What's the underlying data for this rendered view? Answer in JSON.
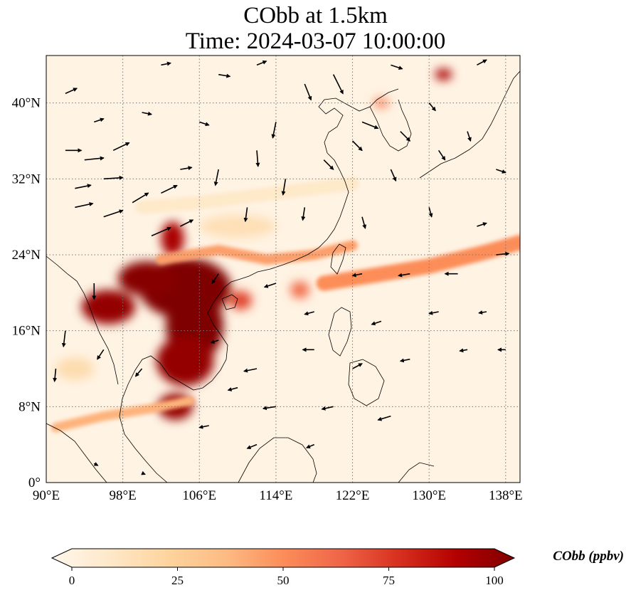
{
  "title": {
    "line1": "CObb at 1.5km",
    "line2": "Time: 2024-03-07 10:00:00"
  },
  "map": {
    "lon_range": [
      90,
      139.5
    ],
    "lat_range": [
      0,
      45
    ],
    "gridlines": true,
    "lon_ticks": [
      {
        "value": 90,
        "label": "90°E"
      },
      {
        "value": 98,
        "label": "98°E"
      },
      {
        "value": 106,
        "label": "106°E"
      },
      {
        "value": 114,
        "label": "114°E"
      },
      {
        "value": 122,
        "label": "122°E"
      },
      {
        "value": 130,
        "label": "130°E"
      },
      {
        "value": 138,
        "label": "138°E"
      }
    ],
    "lat_ticks": [
      {
        "value": 0,
        "label": "0°"
      },
      {
        "value": 8,
        "label": "8°N"
      },
      {
        "value": 16,
        "label": "16°N"
      },
      {
        "value": 24,
        "label": "24°N"
      },
      {
        "value": 32,
        "label": "32°N"
      },
      {
        "value": 40,
        "label": "40°N"
      }
    ],
    "plumes": [
      {
        "lon": 104.5,
        "lat": 20.5,
        "rx": 4.8,
        "ry": 3.2,
        "level": 100
      },
      {
        "lon": 105.5,
        "lat": 16.5,
        "rx": 3.0,
        "ry": 3.8,
        "level": 100
      },
      {
        "lon": 104.5,
        "lat": 12.8,
        "rx": 3.0,
        "ry": 2.6,
        "level": 95
      },
      {
        "lon": 103.5,
        "lat": 8.0,
        "rx": 1.8,
        "ry": 1.4,
        "level": 95
      },
      {
        "lon": 96.5,
        "lat": 18.5,
        "rx": 2.8,
        "ry": 1.8,
        "level": 95
      },
      {
        "lon": 100.5,
        "lat": 21.5,
        "rx": 3.0,
        "ry": 1.8,
        "level": 98
      },
      {
        "lon": 103.2,
        "lat": 25.7,
        "rx": 1.2,
        "ry": 1.8,
        "level": 90
      },
      {
        "lon": 110.3,
        "lat": 19.2,
        "rx": 1.2,
        "ry": 1.0,
        "level": 70
      },
      {
        "lon": 116.5,
        "lat": 20.3,
        "rx": 1.0,
        "ry": 0.9,
        "level": 60
      },
      {
        "lon": 131.5,
        "lat": 43.0,
        "rx": 0.9,
        "ry": 0.6,
        "level": 90
      },
      {
        "lon": 125.0,
        "lat": 40.0,
        "rx": 0.8,
        "ry": 0.5,
        "level": 55
      },
      {
        "lon": 93.0,
        "lat": 12.0,
        "rx": 2.0,
        "ry": 1.2,
        "level": 20
      },
      {
        "lon": 110.0,
        "lat": 27.0,
        "rx": 4.0,
        "ry": 1.2,
        "level": 18
      }
    ],
    "bands": [
      {
        "points": [
          [
            102,
            23.5
          ],
          [
            108,
            24.5
          ],
          [
            113,
            23.5
          ],
          [
            118,
            24.0
          ],
          [
            122,
            25.0
          ]
        ],
        "width": 1.1,
        "level": 45
      },
      {
        "points": [
          [
            119,
            21.0
          ],
          [
            124,
            21.8
          ],
          [
            130,
            22.8
          ],
          [
            136,
            24.3
          ],
          [
            139.5,
            25.3
          ]
        ],
        "width": 1.6,
        "level": 50
      },
      {
        "points": [
          [
            91,
            5.8
          ],
          [
            96,
            7.0
          ],
          [
            101,
            7.8
          ],
          [
            105,
            8.6
          ]
        ],
        "width": 1.0,
        "level": 40
      },
      {
        "points": [
          [
            100,
            29
          ],
          [
            106,
            29.5
          ],
          [
            114,
            30.5
          ],
          [
            122,
            31.5
          ]
        ],
        "width": 1.4,
        "level": 12
      }
    ],
    "wind_arrows": [
      {
        "lon": 92,
        "lat": 35,
        "u": 2.5,
        "v": 0
      },
      {
        "lon": 94,
        "lat": 34,
        "u": 3,
        "v": 0.3
      },
      {
        "lon": 97,
        "lat": 35,
        "u": 2.5,
        "v": 1.2
      },
      {
        "lon": 93,
        "lat": 31,
        "u": 2.5,
        "v": 0.5
      },
      {
        "lon": 96,
        "lat": 32,
        "u": 3,
        "v": 0.2
      },
      {
        "lon": 93,
        "lat": 29,
        "u": 2.8,
        "v": 0.6
      },
      {
        "lon": 96,
        "lat": 28,
        "u": 3,
        "v": 1
      },
      {
        "lon": 99,
        "lat": 29.5,
        "u": 2.5,
        "v": 1.5
      },
      {
        "lon": 102,
        "lat": 30.5,
        "u": 2.5,
        "v": 1.2
      },
      {
        "lon": 101,
        "lat": 26,
        "u": 3,
        "v": 1.3
      },
      {
        "lon": 104,
        "lat": 27,
        "u": 2,
        "v": 1
      },
      {
        "lon": 104,
        "lat": 33,
        "u": 1.8,
        "v": 0.3
      },
      {
        "lon": 108,
        "lat": 33,
        "u": -0.5,
        "v": -2.5
      },
      {
        "lon": 112,
        "lat": 35,
        "u": 0.2,
        "v": -2.5
      },
      {
        "lon": 114,
        "lat": 38,
        "u": -0.5,
        "v": -2.5
      },
      {
        "lon": 117,
        "lat": 42,
        "u": 1,
        "v": -2.5
      },
      {
        "lon": 120,
        "lat": 43,
        "u": 1.5,
        "v": -3
      },
      {
        "lon": 115,
        "lat": 32,
        "u": -0.4,
        "v": -2.5
      },
      {
        "lon": 119,
        "lat": 34,
        "u": 1.5,
        "v": -1.5
      },
      {
        "lon": 122,
        "lat": 36,
        "u": 1.5,
        "v": -1.5
      },
      {
        "lon": 123,
        "lat": 38,
        "u": 2.5,
        "v": -1
      },
      {
        "lon": 127,
        "lat": 37,
        "u": 1.5,
        "v": -1.5
      },
      {
        "lon": 126,
        "lat": 33,
        "u": 0.8,
        "v": -1.8
      },
      {
        "lon": 131,
        "lat": 35,
        "u": 1,
        "v": -1.5
      },
      {
        "lon": 134,
        "lat": 37,
        "u": 0.5,
        "v": -1.5
      },
      {
        "lon": 137,
        "lat": 33,
        "u": 1.5,
        "v": -0.5
      },
      {
        "lon": 130,
        "lat": 29,
        "u": 0.4,
        "v": -1.5
      },
      {
        "lon": 135,
        "lat": 27,
        "u": 1.5,
        "v": 0.5
      },
      {
        "lon": 123,
        "lat": 28,
        "u": 0.5,
        "v": -1.8
      },
      {
        "lon": 117,
        "lat": 29,
        "u": -0.3,
        "v": -2
      },
      {
        "lon": 111,
        "lat": 29,
        "u": -0.3,
        "v": -2.2
      },
      {
        "lon": 108,
        "lat": 22,
        "u": -1,
        "v": -1.5
      },
      {
        "lon": 114,
        "lat": 21,
        "u": -1.8,
        "v": -0.6
      },
      {
        "lon": 118,
        "lat": 18,
        "u": -1.5,
        "v": -0.4
      },
      {
        "lon": 123,
        "lat": 22,
        "u": -1.5,
        "v": -0.3
      },
      {
        "lon": 128,
        "lat": 22,
        "u": -1.8,
        "v": -0.3
      },
      {
        "lon": 133,
        "lat": 22,
        "u": -2,
        "v": 0
      },
      {
        "lon": 137,
        "lat": 24,
        "u": 2,
        "v": 0.2
      },
      {
        "lon": 125,
        "lat": 17,
        "u": -1.5,
        "v": -0.5
      },
      {
        "lon": 131,
        "lat": 18,
        "u": -1.5,
        "v": -0.3
      },
      {
        "lon": 136,
        "lat": 18,
        "u": -1.2,
        "v": -0.2
      },
      {
        "lon": 118,
        "lat": 14,
        "u": -1.8,
        "v": 0
      },
      {
        "lon": 112,
        "lat": 12,
        "u": -2,
        "v": -0.4
      },
      {
        "lon": 122,
        "lat": 12,
        "u": 1.5,
        "v": 0.8
      },
      {
        "lon": 128,
        "lat": 13,
        "u": -1.5,
        "v": -0.3
      },
      {
        "lon": 134,
        "lat": 14,
        "u": -1.2,
        "v": -0.2
      },
      {
        "lon": 138,
        "lat": 14,
        "u": -1.2,
        "v": 0
      },
      {
        "lon": 114,
        "lat": 8,
        "u": -2,
        "v": -0.3
      },
      {
        "lon": 120,
        "lat": 8,
        "u": -1.8,
        "v": -0.4
      },
      {
        "lon": 126,
        "lat": 7,
        "u": -2,
        "v": -0.6
      },
      {
        "lon": 107,
        "lat": 6,
        "u": -1.5,
        "v": -0.3
      },
      {
        "lon": 112,
        "lat": 4,
        "u": -1.5,
        "v": -0.6
      },
      {
        "lon": 118,
        "lat": 4,
        "u": -1.2,
        "v": -0.5
      },
      {
        "lon": 95,
        "lat": 21,
        "u": 0,
        "v": -2.5
      },
      {
        "lon": 92,
        "lat": 16,
        "u": -0.3,
        "v": -2.5
      },
      {
        "lon": 91,
        "lat": 12,
        "u": -0.2,
        "v": -2
      },
      {
        "lon": 96,
        "lat": 14,
        "u": -1,
        "v": -1.5
      },
      {
        "lon": 100,
        "lat": 12,
        "u": -1,
        "v": -1.2
      },
      {
        "lon": 95,
        "lat": 2,
        "u": 0.6,
        "v": -0.3
      },
      {
        "lon": 100,
        "lat": 1,
        "u": 0.5,
        "v": -0.2
      },
      {
        "lon": 108,
        "lat": 15,
        "u": -1.2,
        "v": -0.4
      },
      {
        "lon": 110,
        "lat": 10,
        "u": -1.5,
        "v": -0.4
      },
      {
        "lon": 102,
        "lat": 44,
        "u": 1.5,
        "v": 0.3
      },
      {
        "lon": 108,
        "lat": 43,
        "u": 1.8,
        "v": -0.3
      },
      {
        "lon": 112,
        "lat": 44,
        "u": 1.5,
        "v": 0.6
      },
      {
        "lon": 126,
        "lat": 44,
        "u": 1.8,
        "v": -0.6
      },
      {
        "lon": 135,
        "lat": 44,
        "u": 1.5,
        "v": 0.8
      },
      {
        "lon": 130,
        "lat": 40,
        "u": 1,
        "v": -1.2
      },
      {
        "lon": 100,
        "lat": 39,
        "u": 1.5,
        "v": -0.3
      },
      {
        "lon": 106,
        "lat": 38,
        "u": 1.5,
        "v": -0.5
      },
      {
        "lon": 95,
        "lat": 38,
        "u": 1.5,
        "v": 0.5
      },
      {
        "lon": 92,
        "lat": 41,
        "u": 1.8,
        "v": 0.8
      }
    ]
  },
  "colorbar": {
    "title": "CObb (ppbv)",
    "min": 0,
    "max": 100,
    "extend": "both",
    "colormap": "OrRd",
    "ticks": [
      {
        "value": 0,
        "label": "0"
      },
      {
        "value": 25,
        "label": "25"
      },
      {
        "value": 50,
        "label": "50"
      },
      {
        "value": 75,
        "label": "75"
      },
      {
        "value": 100,
        "label": "100"
      }
    ],
    "colors": [
      "#fff7ec",
      "#fee8c8",
      "#fdd49e",
      "#fdbb84",
      "#fc8d59",
      "#ef6548",
      "#d7301f",
      "#b30000",
      "#7f0000"
    ]
  }
}
